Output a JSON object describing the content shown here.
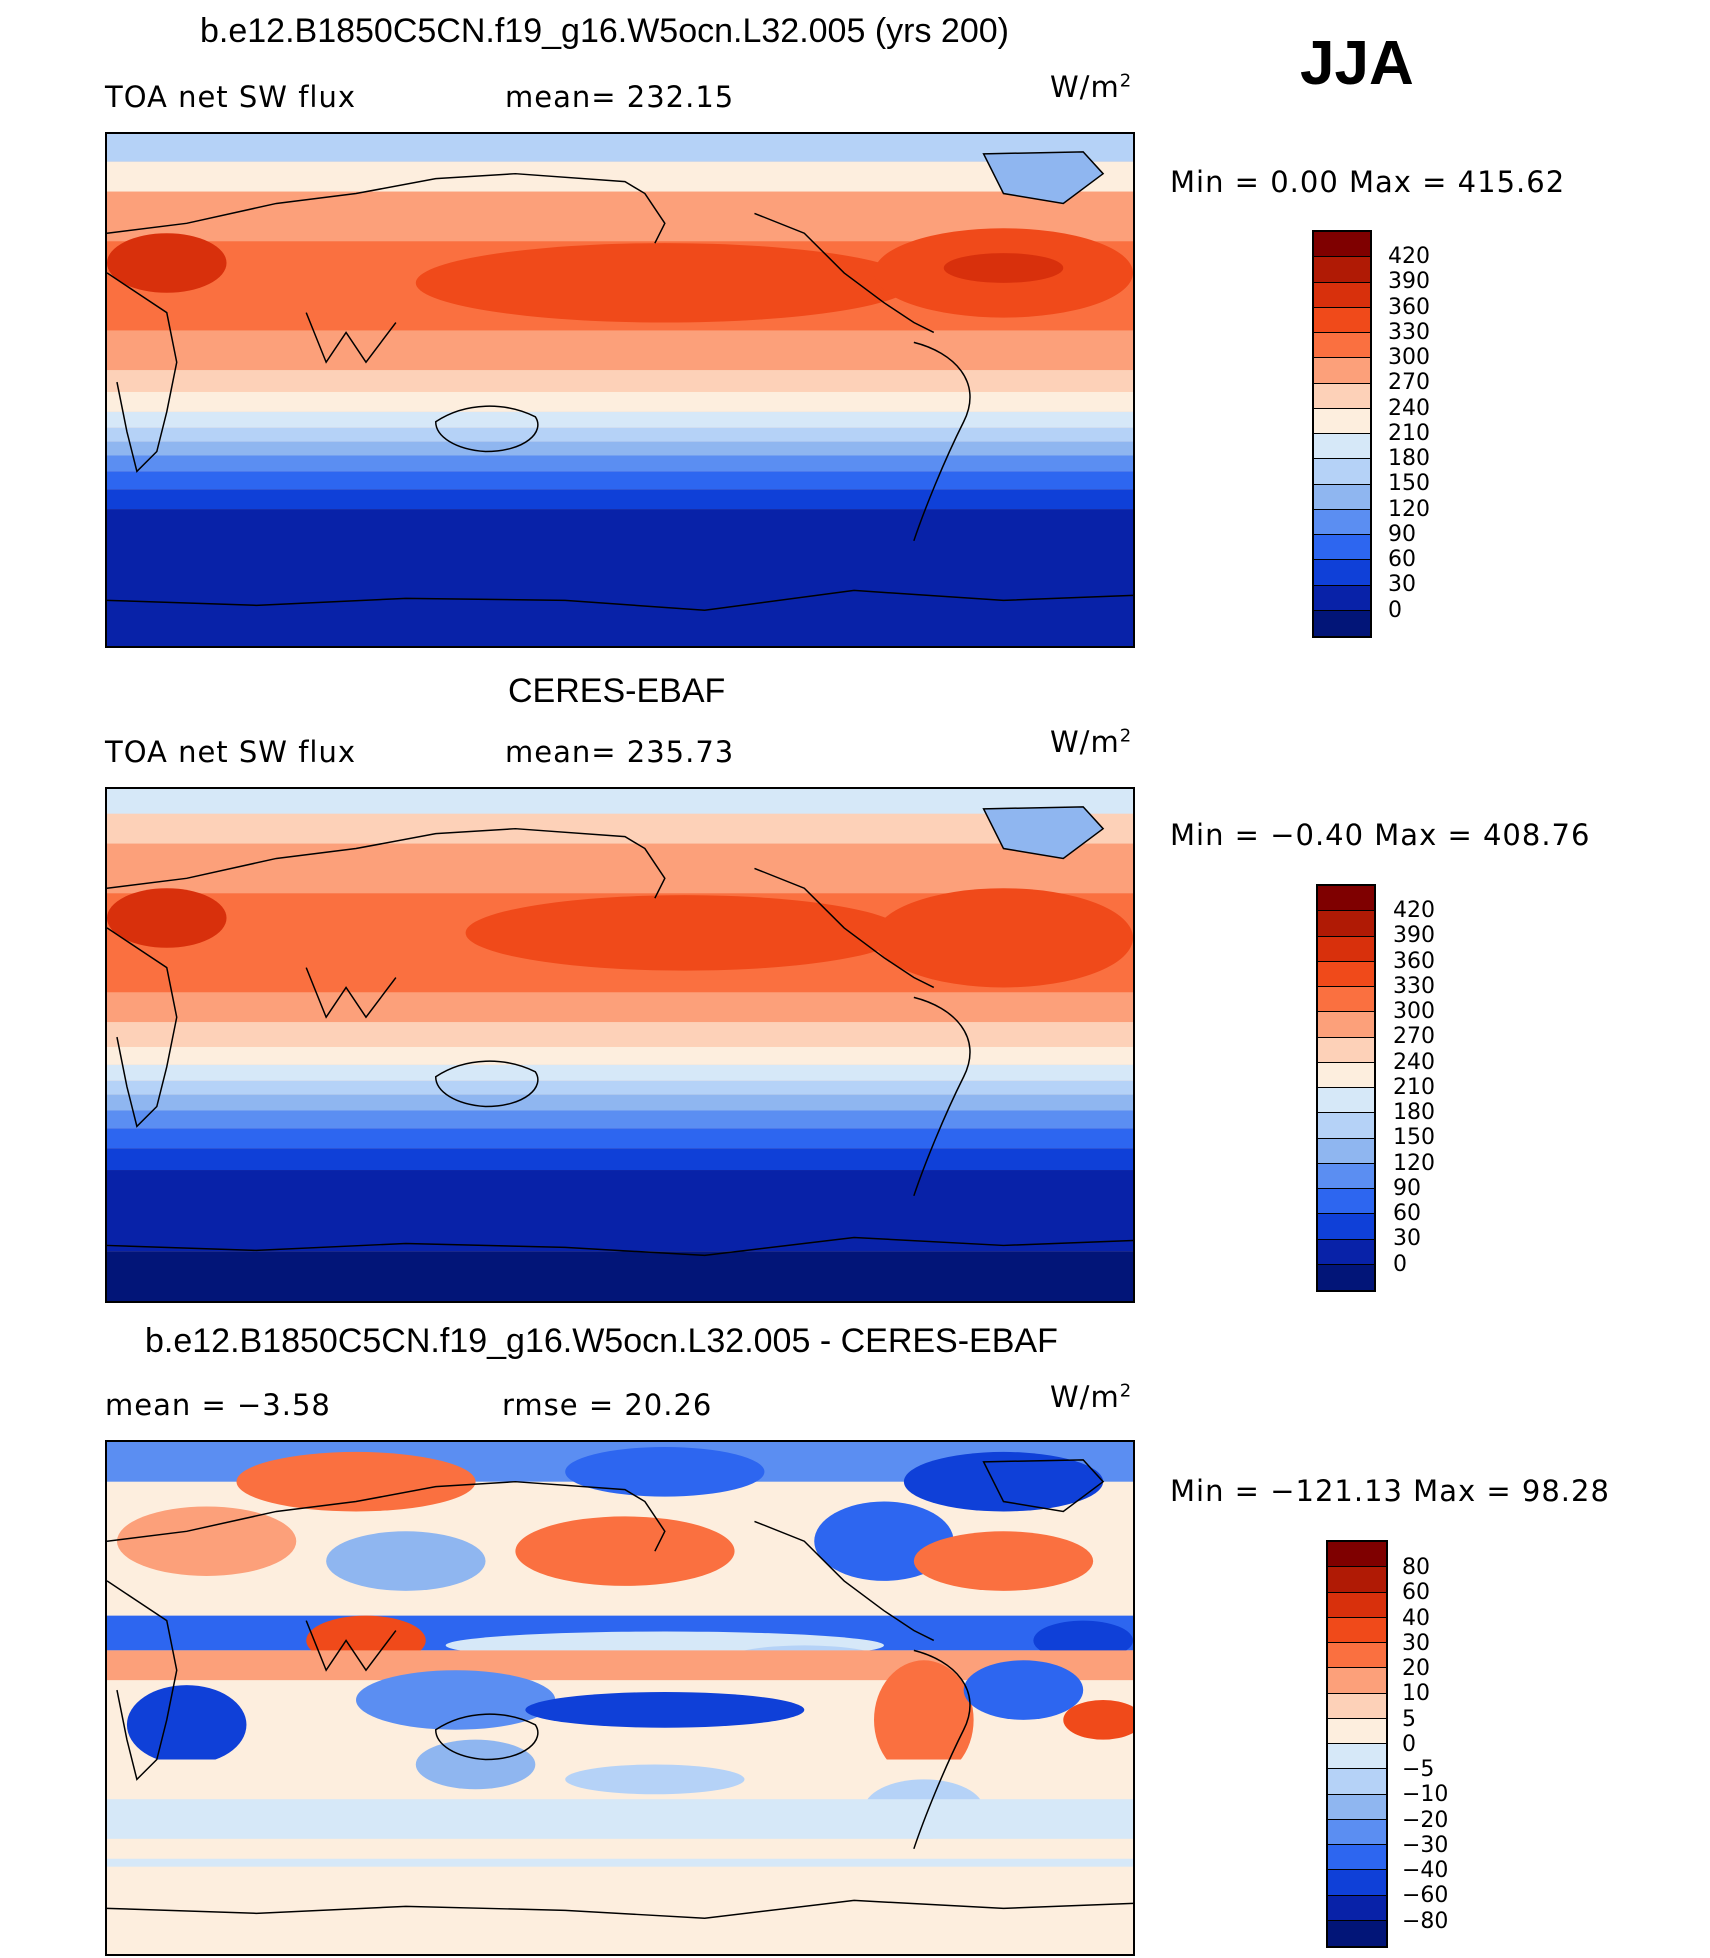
{
  "season": "JJA",
  "panels": [
    {
      "title": "b.e12.B1850C5CN.f19_g16.W5ocn.L32.005 (yrs 200)",
      "left_label": "TOA net SW flux",
      "mid_label": "mean= 232.15",
      "unit": "W/m",
      "unit_exp": "2",
      "minmax": "Min =    0.00  Max  =  415.62",
      "colorbar": {
        "labels": [
          "420",
          "390",
          "360",
          "330",
          "300",
          "270",
          "240",
          "210",
          "180",
          "150",
          "120",
          "90",
          "60",
          "30",
          "0"
        ],
        "colors": [
          "#7f0000",
          "#b01a05",
          "#d8300c",
          "#f04a1a",
          "#fa7040",
          "#fca07a",
          "#fdd1b8",
          "#fdeede",
          "#d6e8f8",
          "#b5d2f7",
          "#8fb6f0",
          "#5b8ef2",
          "#2d66f0",
          "#0f40d8",
          "#0822a8",
          "#021578"
        ]
      }
    },
    {
      "title": "CERES-EBAF",
      "left_label": "TOA net SW flux",
      "mid_label": "mean= 235.73",
      "unit": "W/m",
      "unit_exp": "2",
      "minmax": "Min =  −0.40  Max  =  408.76",
      "colorbar": {
        "labels": [
          "420",
          "390",
          "360",
          "330",
          "300",
          "270",
          "240",
          "210",
          "180",
          "150",
          "120",
          "90",
          "60",
          "30",
          "0"
        ],
        "colors": [
          "#7f0000",
          "#b01a05",
          "#d8300c",
          "#f04a1a",
          "#fa7040",
          "#fca07a",
          "#fdd1b8",
          "#fdeede",
          "#d6e8f8",
          "#b5d2f7",
          "#8fb6f0",
          "#5b8ef2",
          "#2d66f0",
          "#0f40d8",
          "#0822a8",
          "#021578"
        ]
      }
    },
    {
      "title": "b.e12.B1850C5CN.f19_g16.W5ocn.L32.005 - CERES-EBAF",
      "left_label": "mean =    −3.58",
      "mid_label": "rmse =    20.26",
      "unit": "W/m",
      "unit_exp": "2",
      "minmax": "Min = −121.13  Max =    98.28",
      "colorbar": {
        "labels": [
          "80",
          "60",
          "40",
          "30",
          "20",
          "10",
          "5",
          "0",
          "−5",
          "−10",
          "−20",
          "−30",
          "−40",
          "−60",
          "−80"
        ],
        "colors": [
          "#7f0000",
          "#b01a05",
          "#d8300c",
          "#f04a1a",
          "#fa7040",
          "#fca07a",
          "#fdd1b8",
          "#fdeede",
          "#d6e8f8",
          "#b5d2f7",
          "#8fb6f0",
          "#5b8ef2",
          "#2d66f0",
          "#0f40d8",
          "#0822a8",
          "#021578"
        ]
      }
    }
  ]
}
